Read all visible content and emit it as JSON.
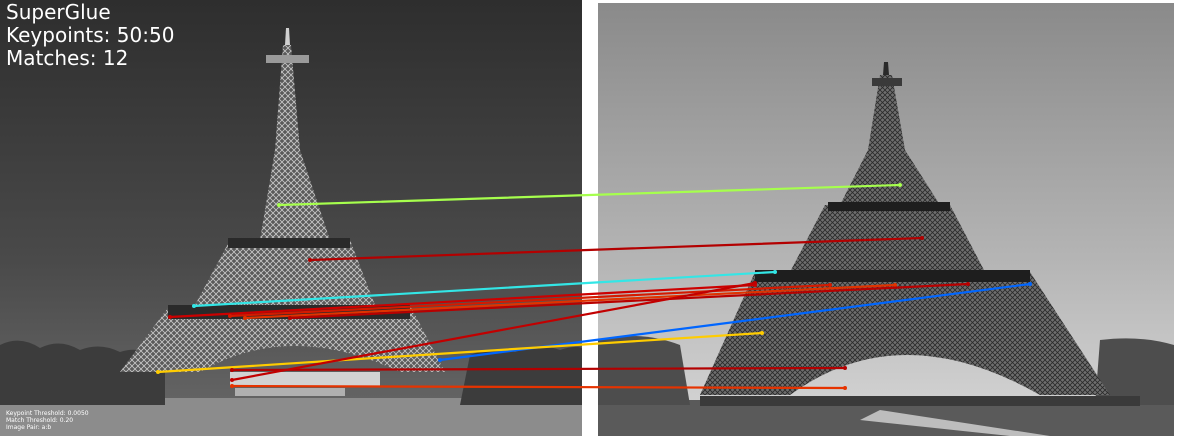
{
  "title": "SuperGlue",
  "keypoints_label": "Keypoints: 50:50",
  "matches_label": "Matches: 12",
  "params": {
    "keypoint_threshold": "Keypoint Threshold: 0.0050",
    "match_threshold": "Match Threshold: 0.20",
    "image_pair": "Image Pair: a:b"
  },
  "matches": [
    {
      "color": "#a6ff4d"
    },
    {
      "color": "#b30000"
    },
    {
      "color": "#33e6e6"
    },
    {
      "color": "#cc0000"
    },
    {
      "color": "#d41a00"
    },
    {
      "color": "#e03300"
    },
    {
      "color": "#b80000"
    },
    {
      "color": "#0066ff"
    },
    {
      "color": "#ffcc00"
    },
    {
      "color": "#b30000"
    },
    {
      "color": "#e63300"
    },
    {
      "color": "#c20000"
    }
  ]
}
